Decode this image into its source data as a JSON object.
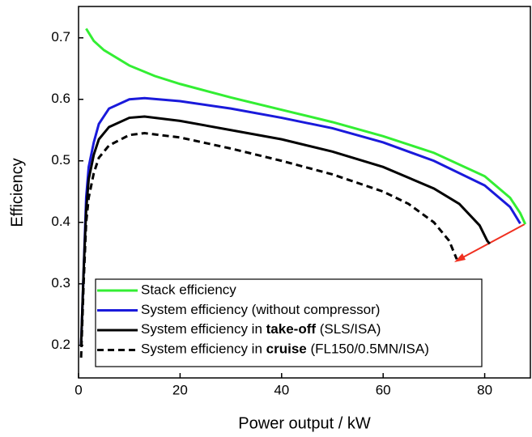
{
  "chart_data": {
    "type": "line",
    "xlabel": "Power output / kW",
    "ylabel": "Efficiency",
    "xlim": [
      0,
      89
    ],
    "ylim": [
      0.147,
      0.751
    ],
    "xticks": [
      0,
      20,
      40,
      60,
      80
    ],
    "yticks": [
      0.2,
      0.3,
      0.4,
      0.5,
      0.6,
      0.7
    ],
    "grid": false,
    "legend": "lower left",
    "series": [
      {
        "name": "Stack efficiency",
        "color": "#33ee33",
        "dash": false,
        "x": [
          1.5,
          3,
          5,
          10,
          15,
          20,
          30,
          40,
          50,
          60,
          70,
          80,
          85,
          87,
          88
        ],
        "values": [
          0.715,
          0.695,
          0.68,
          0.655,
          0.638,
          0.625,
          0.603,
          0.583,
          0.563,
          0.54,
          0.513,
          0.475,
          0.44,
          0.415,
          0.397
        ]
      },
      {
        "name": "System efficiency (without compressor)",
        "color": "#1a1adb",
        "dash": false,
        "x": [
          0.5,
          1,
          1.5,
          2,
          3,
          4,
          6,
          10,
          13,
          20,
          30,
          40,
          50,
          60,
          70,
          80,
          85,
          87
        ],
        "values": [
          0.2,
          0.32,
          0.44,
          0.49,
          0.53,
          0.56,
          0.585,
          0.6,
          0.602,
          0.597,
          0.585,
          0.57,
          0.553,
          0.53,
          0.5,
          0.46,
          0.425,
          0.398
        ]
      },
      {
        "name": "System efficiency in take-off (SLS/ISA)",
        "emphasis": "take-off",
        "color": "#000000",
        "dash": false,
        "x": [
          0.5,
          1,
          1.5,
          2,
          3,
          4,
          6,
          10,
          13,
          20,
          30,
          40,
          50,
          60,
          70,
          75,
          79,
          80.5,
          81
        ],
        "values": [
          0.2,
          0.32,
          0.42,
          0.47,
          0.51,
          0.535,
          0.555,
          0.57,
          0.572,
          0.565,
          0.55,
          0.535,
          0.515,
          0.49,
          0.455,
          0.43,
          0.395,
          0.37,
          0.365
        ]
      },
      {
        "name": "System efficiency in cruise (FL150/0.5MN/ISA)",
        "emphasis": "cruise",
        "color": "#000000",
        "dash": true,
        "x": [
          0.5,
          1,
          1.5,
          2,
          3,
          4,
          6,
          10,
          13,
          20,
          30,
          40,
          50,
          60,
          65,
          70,
          73,
          74.5
        ],
        "values": [
          0.18,
          0.3,
          0.4,
          0.44,
          0.48,
          0.505,
          0.525,
          0.542,
          0.545,
          0.538,
          0.52,
          0.5,
          0.478,
          0.45,
          0.43,
          0.4,
          0.37,
          0.34
        ]
      }
    ]
  }
}
